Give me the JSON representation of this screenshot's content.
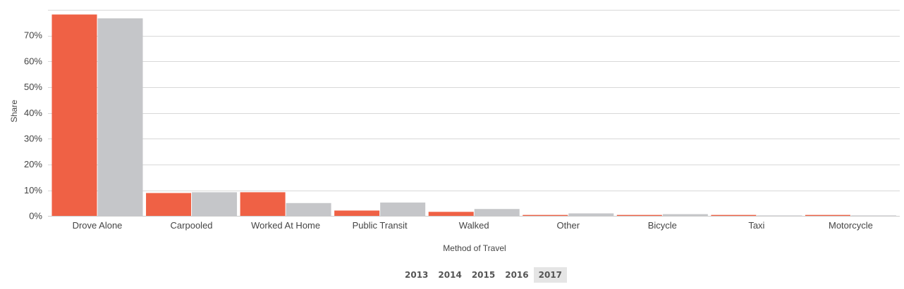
{
  "chart_data": {
    "type": "bar",
    "xlabel": "Method of Travel",
    "ylabel": "Share",
    "ylim": [
      0,
      80
    ],
    "yticks": [
      0,
      10,
      20,
      30,
      40,
      50,
      60,
      70
    ],
    "ytick_labels": [
      "0%",
      "10%",
      "20%",
      "30%",
      "40%",
      "50%",
      "60%",
      "70%"
    ],
    "grid": true,
    "categories": [
      "Drove Alone",
      "Carpooled",
      "Worked At Home",
      "Public Transit",
      "Walked",
      "Other",
      "Bicycle",
      "Taxi",
      "Motorcycle"
    ],
    "series": [
      {
        "color": "#ef6145",
        "values": [
          78.2,
          9.0,
          9.3,
          2.2,
          1.7,
          0.5,
          0.5,
          0.5,
          0.5
        ]
      },
      {
        "color": "#c5c6c9",
        "values": [
          76.7,
          9.3,
          5.1,
          5.3,
          2.8,
          1.1,
          0.8,
          0.3,
          0.3
        ]
      }
    ]
  },
  "year_selector": {
    "years": [
      "2013",
      "2014",
      "2015",
      "2016",
      "2017"
    ],
    "selected": "2017"
  }
}
